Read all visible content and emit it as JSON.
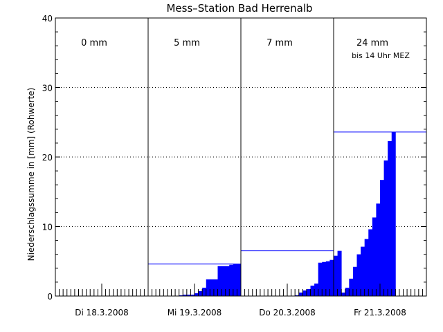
{
  "chart_data": {
    "type": "bar",
    "title": "Mess–Station Bad Herrenalb",
    "ylabel": "Niederschlagssumme in [mm] (Rohwerte)",
    "xlabel": "",
    "ylim": [
      0,
      40
    ],
    "yticks": [
      0,
      10,
      20,
      30,
      40
    ],
    "grid_y": [
      10,
      20,
      30
    ],
    "days": [
      {
        "label": "Di 18.3.2008",
        "total_label": "0 mm",
        "note": "",
        "total": 0
      },
      {
        "label": "Mi 19.3.2008",
        "total_label": "5 mm",
        "note": "",
        "total": 4.6
      },
      {
        "label": "Do 20.3.2008",
        "total_label": "7 mm",
        "note": "",
        "total": 6.5
      },
      {
        "label": "Fr 21.3.2008",
        "total_label": "24 mm",
        "note": "bis 14 Uhr MEZ",
        "total": 23.6
      }
    ],
    "series": [
      {
        "color": "#0000ff",
        "bins_per_day": 24,
        "values": [
          0,
          0,
          0,
          0,
          0,
          0,
          0,
          0,
          0,
          0,
          0,
          0,
          0,
          0,
          0,
          0,
          0,
          0,
          0,
          0,
          0,
          0,
          0,
          0,
          0,
          0,
          0,
          0,
          0,
          0,
          0,
          0,
          0.1,
          0.2,
          0.2,
          0.2,
          0.4,
          0.7,
          1.2,
          2.4,
          2.4,
          2.4,
          4.3,
          4.3,
          4.3,
          4.5,
          4.6,
          4.6,
          0,
          0,
          0,
          0,
          0,
          0,
          0,
          0,
          0,
          0,
          0,
          0,
          0,
          0,
          0.1,
          0.5,
          0.8,
          1.0,
          1.5,
          1.8,
          4.8,
          4.9,
          5.0,
          5.2,
          5.8,
          6.5,
          0.5,
          1.2,
          2.5,
          4.2,
          6.0,
          7.1,
          8.2,
          9.6,
          11.3,
          13.3,
          16.7,
          19.5,
          22.3,
          23.6
        ]
      }
    ],
    "colors": {
      "bars": "#0000ff",
      "total_line": "#0000ff",
      "axes": "#000000",
      "grid": "#000000"
    }
  }
}
